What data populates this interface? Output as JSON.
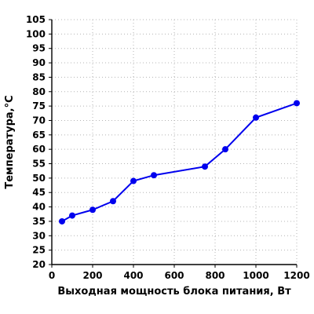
{
  "chart_data": {
    "type": "line",
    "xlabel": "Выходная мощность блока питания, Вт",
    "ylabel": "Температура,°C",
    "xlim": [
      0,
      1200
    ],
    "ylim": [
      20,
      105
    ],
    "x_ticks": [
      0,
      200,
      400,
      600,
      800,
      1000,
      1200
    ],
    "y_ticks": [
      20,
      25,
      30,
      35,
      40,
      45,
      50,
      55,
      60,
      65,
      70,
      75,
      80,
      85,
      90,
      95,
      100,
      105
    ],
    "grid": true,
    "legend": "none",
    "series": [
      {
        "color": "#0000ee",
        "x": [
          50,
          100,
          200,
          300,
          400,
          500,
          750,
          850,
          1000,
          1200
        ],
        "y": [
          35,
          37,
          39,
          42,
          49,
          51,
          54,
          60,
          71,
          76
        ]
      }
    ]
  }
}
